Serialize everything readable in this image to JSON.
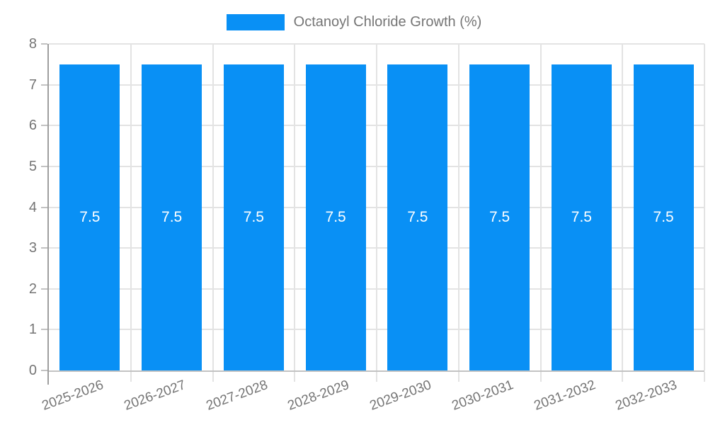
{
  "legend": {
    "label": "Octanoyl Chloride Growth (%)"
  },
  "chart_data": {
    "type": "bar",
    "title": "Octanoyl Chloride Growth (%)",
    "categories": [
      "2025-2026",
      "2026-2027",
      "2027-2028",
      "2028-2029",
      "2029-2030",
      "2030-2031",
      "2031-2032",
      "2032-2033"
    ],
    "series": [
      {
        "name": "Octanoyl Chloride Growth (%)",
        "values": [
          7.5,
          7.5,
          7.5,
          7.5,
          7.5,
          7.5,
          7.5,
          7.5
        ]
      }
    ],
    "bar_labels": [
      "7.5",
      "7.5",
      "7.5",
      "7.5",
      "7.5",
      "7.5",
      "7.5",
      "7.5"
    ],
    "xlabel": "",
    "ylabel": "",
    "ylim": [
      0,
      8
    ],
    "yticks": [
      0,
      1,
      2,
      3,
      4,
      5,
      6,
      7,
      8
    ],
    "grid": true,
    "legend_position": "top",
    "colors": {
      "bar": "#0990f5",
      "bar_label_text": "#ffffff",
      "tick_label_text": "#757575",
      "gridline": "#e3e3e3",
      "axis_line": "#9e9e9e",
      "baseline": "#c2c2c2",
      "background": "#ffffff"
    }
  }
}
